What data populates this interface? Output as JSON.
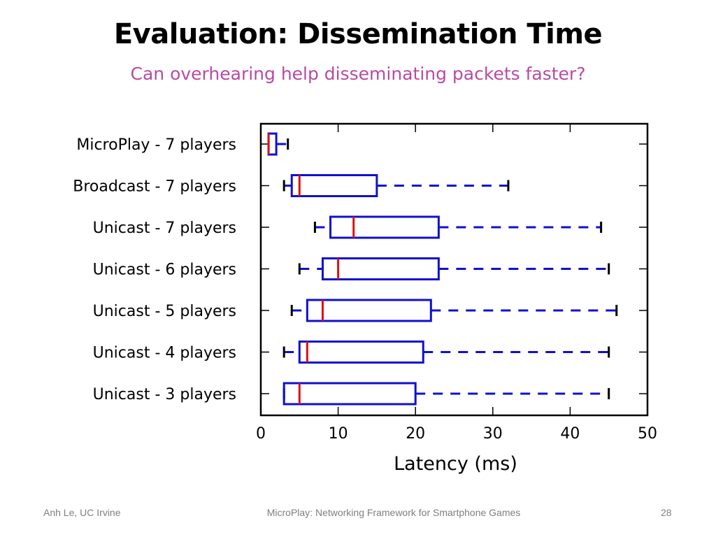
{
  "slide": {
    "title": "Evaluation: Dissemination Time",
    "subtitle": "Can overhearing help disseminating packets faster?",
    "footer_left": "Anh Le, UC Irvine",
    "footer_center": "MicroPlay: Networking Framework for Smartphone Games",
    "page_number": "28"
  },
  "colors": {
    "box": "#1010d0",
    "median": "#e01010",
    "whisker": "#1010d0",
    "cap": "#000000",
    "axes": "#000000",
    "subtitle": "#b84aa4"
  },
  "chart_data": {
    "type": "boxplot",
    "orientation": "horizontal",
    "xlabel": "Latency (ms)",
    "xlim": [
      0,
      50
    ],
    "xticks": [
      0,
      10,
      20,
      30,
      40,
      50
    ],
    "grid": false,
    "categories": [
      "MicroPlay - 7 players",
      "Broadcast - 7 players",
      "Unicast - 7 players",
      "Unicast - 6 players",
      "Unicast - 5 players",
      "Unicast - 4 players",
      "Unicast - 3 players"
    ],
    "boxes": [
      {
        "min": 1,
        "q1": 1,
        "median": 1,
        "q3": 2,
        "max": 3.5
      },
      {
        "min": 3,
        "q1": 4,
        "median": 5,
        "q3": 15,
        "max": 32
      },
      {
        "min": 7,
        "q1": 9,
        "median": 12,
        "q3": 23,
        "max": 44
      },
      {
        "min": 5,
        "q1": 8,
        "median": 10,
        "q3": 23,
        "max": 45
      },
      {
        "min": 4,
        "q1": 6,
        "median": 8,
        "q3": 22,
        "max": 46
      },
      {
        "min": 3,
        "q1": 5,
        "median": 6,
        "q3": 21,
        "max": 45
      },
      {
        "min": 3,
        "q1": 3,
        "median": 5,
        "q3": 20,
        "max": 45
      }
    ]
  }
}
